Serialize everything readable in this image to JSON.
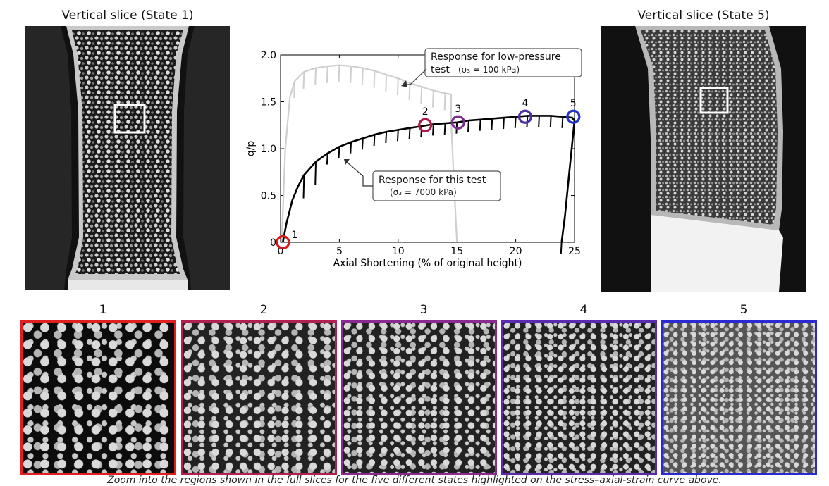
{
  "left_slice": {
    "title": "Vertical slice (State 1)"
  },
  "right_slice": {
    "title": "Vertical slice (State 5)"
  },
  "chart_data": {
    "type": "line",
    "xlabel": "Axial Shortening (% of original height)",
    "ylabel": "q/p",
    "xlim": [
      0,
      25
    ],
    "ylim": [
      0,
      2.0
    ],
    "xticks": [
      "0",
      "5",
      "10",
      "15",
      "20",
      "25"
    ],
    "yticks": [
      "0",
      "0.5",
      "1.0",
      "1.5",
      "2.0"
    ],
    "grid": false,
    "series": [
      {
        "role": "low-pressure",
        "color": "#cfcfcf",
        "x": [
          0.1,
          0.4,
          0.8,
          1.2,
          2,
          3,
          4,
          5,
          6,
          7,
          8,
          9,
          10,
          11,
          12,
          13,
          14,
          14.5,
          14.5,
          14.8,
          15.0
        ],
        "y": [
          0.0,
          1.0,
          1.55,
          1.72,
          1.82,
          1.86,
          1.88,
          1.89,
          1.88,
          1.86,
          1.83,
          1.79,
          1.75,
          1.7,
          1.66,
          1.62,
          1.59,
          1.58,
          1.3,
          0.5,
          0.0
        ]
      },
      {
        "role": "this-test",
        "color": "#000000",
        "x": [
          0.2,
          0.5,
          1,
          1.5,
          2,
          3,
          4,
          5,
          6,
          7,
          8,
          9,
          10,
          11,
          12,
          13,
          14,
          15,
          16,
          17,
          18,
          19,
          20,
          21,
          22,
          23,
          24,
          24.8,
          25.0,
          24.6,
          24.2,
          23.9
        ],
        "y": [
          0.0,
          0.2,
          0.45,
          0.6,
          0.72,
          0.86,
          0.95,
          1.02,
          1.07,
          1.11,
          1.15,
          1.18,
          1.2,
          1.22,
          1.24,
          1.26,
          1.27,
          1.28,
          1.3,
          1.31,
          1.32,
          1.33,
          1.34,
          1.35,
          1.35,
          1.35,
          1.34,
          1.33,
          1.3,
          0.8,
          0.3,
          0.0
        ]
      }
    ],
    "states": [
      {
        "label": "1",
        "x": 0.2,
        "y": 0.0,
        "color": "#d7191c"
      },
      {
        "label": "2",
        "x": 12.3,
        "y": 1.25,
        "color": "#b01b4a"
      },
      {
        "label": "3",
        "x": 15.1,
        "y": 1.28,
        "color": "#7b2b8c"
      },
      {
        "label": "4",
        "x": 20.8,
        "y": 1.34,
        "color": "#4b2ea8"
      },
      {
        "label": "5",
        "x": 24.9,
        "y": 1.34,
        "color": "#2233cc"
      }
    ],
    "annotations": {
      "low_pressure": {
        "line1": "Response for low-pressure",
        "line2": "test",
        "sigma": "(σ₃ = 100 kPa)"
      },
      "this_test": {
        "line1": "Response for this test",
        "sigma": "(σ₃ = 7000 kPa)"
      }
    }
  },
  "zoom_panels": [
    {
      "label": "1",
      "color": "#e02020"
    },
    {
      "label": "2",
      "color": "#b02050"
    },
    {
      "label": "3",
      "color": "#8a2a90"
    },
    {
      "label": "4",
      "color": "#5a2ab0"
    },
    {
      "label": "5",
      "color": "#2a2ad0"
    }
  ],
  "caption": "Zoom into the regions shown in the full slices for the five different states highlighted on the stress–axial-strain curve above."
}
